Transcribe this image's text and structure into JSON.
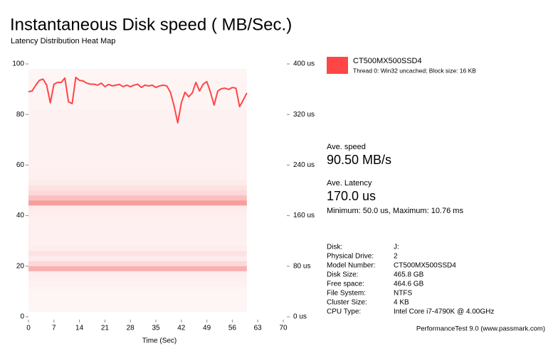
{
  "chart_data": {
    "type": "line",
    "title": "Instantaneous Disk speed ( MB/Sec.)",
    "subtitle": "Latency Distribution Heat Map",
    "x_label": "Time (Sec)",
    "x": [
      0,
      1,
      2,
      3,
      4,
      5,
      6,
      7,
      8,
      9,
      10,
      11,
      12,
      13,
      14,
      15,
      16,
      17,
      18,
      19,
      20,
      21,
      22,
      23,
      24,
      25,
      26,
      27,
      28,
      29,
      30,
      31,
      32,
      33,
      34,
      35,
      36,
      37,
      38,
      39,
      40,
      41,
      42,
      43,
      44,
      45,
      46,
      47,
      48,
      49,
      50,
      51,
      52,
      53,
      54,
      55,
      56,
      57,
      58,
      59,
      60
    ],
    "series": [
      {
        "name": "CT500MX500SSD4",
        "description": "Thread 0: Win32 uncached; Block size: 16 KB",
        "color": "#ff4646",
        "values": [
          89,
          89.3,
          91.6,
          93.5,
          94,
          91.6,
          84.6,
          92,
          92.7,
          92.7,
          94.4,
          85,
          84.3,
          94.7,
          93.5,
          93.3,
          92.4,
          92,
          92,
          91.6,
          92.4,
          91,
          91.9,
          91.3,
          91.6,
          91.9,
          91,
          91.6,
          91,
          91.6,
          92,
          90.7,
          91.6,
          91.3,
          91.6,
          90.7,
          91.3,
          91.6,
          91.3,
          88.8,
          83.4,
          76.7,
          84.6,
          88.8,
          87,
          88.5,
          92.7,
          89.3,
          92,
          93,
          88.8,
          83.7,
          89.3,
          90.2,
          90.4,
          89.9,
          90.7,
          90.4,
          83.1,
          85.7,
          88.5
        ]
      }
    ],
    "xlim": [
      0,
      70
    ],
    "xticks": [
      0,
      7,
      14,
      21,
      28,
      35,
      42,
      49,
      56,
      63,
      70
    ],
    "ylim": [
      0,
      100
    ],
    "yticks": [
      0,
      20,
      40,
      60,
      80,
      100
    ],
    "y2lim": [
      0,
      400
    ],
    "y2ticks": [
      {
        "value": 0,
        "label": "0 us"
      },
      {
        "value": 80,
        "label": "80 us"
      },
      {
        "value": 160,
        "label": "160 us"
      },
      {
        "value": 240,
        "label": "240 us"
      },
      {
        "value": 320,
        "label": "320 us"
      },
      {
        "value": 400,
        "label": "400 us"
      }
    ],
    "heatmap": {
      "color": "#f03c3c",
      "y_bins": [
        8,
        16,
        24,
        32,
        40,
        48,
        56,
        64,
        72,
        80,
        88,
        96,
        104,
        112,
        120,
        128,
        136,
        144,
        152,
        160,
        168,
        176,
        184,
        192,
        200,
        208,
        216,
        224,
        232,
        240,
        248,
        256,
        264,
        272,
        280,
        288,
        296,
        304,
        312,
        320,
        328,
        336,
        344,
        352,
        360,
        368,
        376,
        384,
        392
      ],
      "intensity": [
        0.05,
        0.05,
        0.05,
        0.05,
        0.06,
        0.07,
        0.08,
        0.09,
        0.4,
        0.2,
        0.1,
        0.15,
        0.09,
        0.08,
        0.08,
        0.08,
        0.08,
        0.08,
        0.08,
        0.09,
        0.1,
        0.5,
        0.32,
        0.2,
        0.15,
        0.1,
        0.08,
        0.08,
        0.07,
        0.07,
        0.07,
        0.07,
        0.07,
        0.07,
        0.07,
        0.07,
        0.07,
        0.07,
        0.07,
        0.07,
        0.06,
        0.06,
        0.06,
        0.06,
        0.06,
        0.06,
        0.05,
        0.05
      ]
    }
  },
  "panel": {
    "speed_label": "Ave. speed",
    "speed": "90.50 MB/s",
    "latency_label": "Ave. Latency",
    "latency": "170.0 us",
    "latency_range": "Minimum: 50.0 us, Maximum: 10.76 ms",
    "info": [
      [
        "Disk:",
        "J:"
      ],
      [
        "Physical Drive:",
        "2"
      ],
      [
        "Model Number:",
        "CT500MX500SSD4"
      ],
      [
        "Disk Size:",
        "465.8 GB"
      ],
      [
        "Free space:",
        "464.6 GB"
      ],
      [
        "File System:",
        "NTFS"
      ],
      [
        "Cluster Size:",
        "4 KB"
      ],
      [
        "CPU Type:",
        "Intel Core i7-4790K @ 4.00GHz"
      ]
    ],
    "footer": "PerformanceTest 9.0 (www.passmark.com)"
  }
}
